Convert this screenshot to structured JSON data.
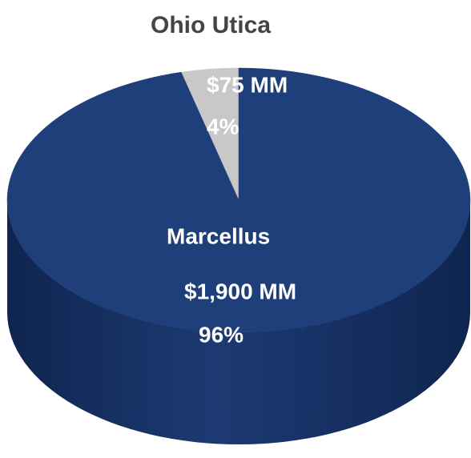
{
  "chart_data": {
    "type": "pie",
    "title": "Ohio Utica",
    "categories": [
      "Ohio Utica",
      "Marcellus"
    ],
    "values": [
      4,
      96
    ],
    "value_labels": [
      "4%",
      "96%"
    ],
    "amount_labels": [
      "$75 MM",
      "$1,900 MM"
    ],
    "colors": [
      "#c8c8c8",
      "#1f3f7a"
    ]
  }
}
